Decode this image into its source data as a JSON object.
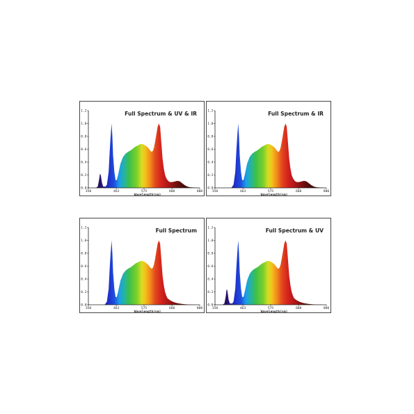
{
  "colors": {
    "border": "#444444",
    "axis": "#222222",
    "tail_ir": "#2a0d0d",
    "tail_uv": "#14072a"
  },
  "chart_data": [
    {
      "type": "area",
      "title": "Full Spectrum & UV & IR",
      "xlabel": "Wavelength(nm)",
      "xlim": [
        350,
        800
      ],
      "ylim": [
        0,
        1.2
      ],
      "yticks": [
        "0.0",
        "0.2",
        "0.4",
        "0.6",
        "0.8",
        "1.0",
        "1.2"
      ],
      "xticks": [
        "350",
        "463",
        "575",
        "688",
        "800"
      ],
      "series": [
        {
          "x": [
            380,
            388,
            393,
            397,
            400,
            405,
            410,
            420,
            425,
            432,
            436,
            440,
            444,
            447,
            450,
            455,
            460,
            465,
            470,
            480,
            490,
            500,
            510,
            520,
            530,
            540,
            550,
            560,
            570,
            580,
            590,
            600,
            605,
            610,
            615,
            620,
            630,
            635,
            640,
            645,
            650,
            655,
            660,
            665,
            670,
            675,
            680,
            690,
            700,
            710,
            720,
            730,
            740,
            750,
            760,
            775,
            790,
            800
          ],
          "y": [
            0,
            0.02,
            0.12,
            0.22,
            0.2,
            0.08,
            0.02,
            0.02,
            0.05,
            0.25,
            0.55,
            0.8,
            1.0,
            0.8,
            0.5,
            0.25,
            0.12,
            0.12,
            0.2,
            0.38,
            0.48,
            0.53,
            0.56,
            0.58,
            0.61,
            0.64,
            0.66,
            0.68,
            0.68,
            0.66,
            0.63,
            0.58,
            0.56,
            0.57,
            0.62,
            0.72,
            0.95,
            1.0,
            0.95,
            0.7,
            0.45,
            0.3,
            0.2,
            0.15,
            0.12,
            0.1,
            0.09,
            0.09,
            0.1,
            0.11,
            0.1,
            0.07,
            0.04,
            0.02,
            0.01,
            0.005,
            0.002,
            0
          ]
        }
      ]
    },
    {
      "type": "area",
      "title": "Full Spectrum & IR",
      "xlabel": "Wavelength(nm)",
      "xlim": [
        350,
        800
      ],
      "ylim": [
        0,
        1.2
      ],
      "yticks": [
        "0.0",
        "0.2",
        "0.4",
        "0.6",
        "0.8",
        "1.0",
        "1.2"
      ],
      "xticks": [
        "350",
        "463",
        "575",
        "688",
        "800"
      ],
      "series": [
        {
          "x": [
            415,
            420,
            425,
            432,
            436,
            440,
            444,
            447,
            450,
            455,
            460,
            465,
            470,
            480,
            490,
            500,
            510,
            520,
            530,
            540,
            550,
            560,
            570,
            580,
            590,
            600,
            605,
            610,
            615,
            620,
            630,
            635,
            640,
            645,
            650,
            655,
            660,
            665,
            670,
            675,
            680,
            690,
            700,
            710,
            720,
            730,
            740,
            750,
            760,
            775,
            790,
            800
          ],
          "y": [
            0,
            0.02,
            0.05,
            0.25,
            0.55,
            0.8,
            1.0,
            0.8,
            0.5,
            0.25,
            0.12,
            0.12,
            0.2,
            0.38,
            0.48,
            0.53,
            0.56,
            0.58,
            0.61,
            0.64,
            0.66,
            0.68,
            0.68,
            0.66,
            0.63,
            0.58,
            0.56,
            0.57,
            0.62,
            0.72,
            0.95,
            1.0,
            0.95,
            0.7,
            0.45,
            0.3,
            0.2,
            0.15,
            0.12,
            0.1,
            0.09,
            0.09,
            0.1,
            0.11,
            0.1,
            0.07,
            0.04,
            0.02,
            0.01,
            0.005,
            0.002,
            0
          ]
        }
      ]
    },
    {
      "type": "area",
      "title": "Full Spectrum",
      "xlabel": "Wavelength(nm)",
      "xlim": [
        350,
        800
      ],
      "ylim": [
        0,
        1.2
      ],
      "yticks": [
        "0.0",
        "0.2",
        "0.4",
        "0.6",
        "0.8",
        "1.0",
        "1.2"
      ],
      "xticks": [
        "350",
        "463",
        "575",
        "688",
        "800"
      ],
      "series": [
        {
          "x": [
            415,
            420,
            425,
            432,
            436,
            440,
            444,
            447,
            450,
            455,
            460,
            465,
            470,
            480,
            490,
            500,
            510,
            520,
            530,
            540,
            550,
            560,
            570,
            580,
            590,
            600,
            605,
            610,
            615,
            620,
            630,
            635,
            640,
            645,
            650,
            655,
            660,
            665,
            670,
            680,
            690,
            700,
            710,
            720,
            730,
            740,
            750,
            760,
            775,
            790,
            800
          ],
          "y": [
            0,
            0.02,
            0.05,
            0.25,
            0.55,
            0.8,
            1.0,
            0.8,
            0.5,
            0.25,
            0.12,
            0.12,
            0.2,
            0.38,
            0.48,
            0.53,
            0.56,
            0.58,
            0.61,
            0.64,
            0.66,
            0.68,
            0.68,
            0.66,
            0.63,
            0.58,
            0.56,
            0.57,
            0.62,
            0.72,
            0.95,
            1.0,
            0.95,
            0.7,
            0.45,
            0.3,
            0.2,
            0.14,
            0.1,
            0.07,
            0.05,
            0.035,
            0.025,
            0.018,
            0.012,
            0.008,
            0.005,
            0.003,
            0.001,
            0,
            0
          ]
        }
      ]
    },
    {
      "type": "area",
      "title": "Full Spectrum & UV",
      "xlabel": "Wavelength(nm)",
      "xlim": [
        350,
        800
      ],
      "ylim": [
        0,
        1.2
      ],
      "yticks": [
        "0.0",
        "0.2",
        "0.4",
        "0.6",
        "0.8",
        "1.0",
        "1.2"
      ],
      "xticks": [
        "350",
        "463",
        "575",
        "688",
        "800"
      ],
      "series": [
        {
          "x": [
            380,
            388,
            393,
            397,
            400,
            405,
            410,
            420,
            425,
            432,
            436,
            440,
            444,
            447,
            450,
            455,
            460,
            465,
            470,
            480,
            490,
            500,
            510,
            520,
            530,
            540,
            550,
            560,
            570,
            580,
            590,
            600,
            605,
            610,
            615,
            620,
            630,
            635,
            640,
            645,
            650,
            655,
            660,
            665,
            670,
            680,
            690,
            700,
            710,
            720,
            730,
            740,
            750,
            760,
            775,
            790,
            800
          ],
          "y": [
            0,
            0.02,
            0.12,
            0.24,
            0.22,
            0.08,
            0.02,
            0.02,
            0.05,
            0.25,
            0.55,
            0.8,
            1.0,
            0.8,
            0.5,
            0.25,
            0.12,
            0.12,
            0.2,
            0.38,
            0.48,
            0.53,
            0.56,
            0.58,
            0.61,
            0.64,
            0.66,
            0.68,
            0.68,
            0.66,
            0.63,
            0.58,
            0.56,
            0.57,
            0.62,
            0.72,
            0.95,
            1.0,
            0.95,
            0.7,
            0.45,
            0.3,
            0.2,
            0.14,
            0.1,
            0.07,
            0.05,
            0.035,
            0.025,
            0.018,
            0.012,
            0.008,
            0.005,
            0.003,
            0.001,
            0,
            0
          ]
        }
      ]
    }
  ]
}
